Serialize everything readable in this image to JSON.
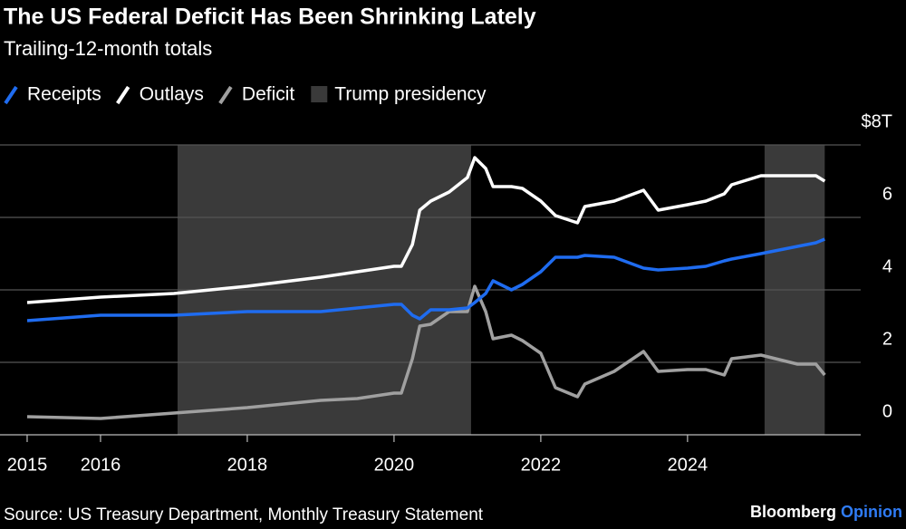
{
  "chart_data": {
    "type": "line",
    "title": "The US Federal Deficit Has Been Shrinking Lately",
    "subtitle": "Trailing-12-month totals",
    "source": "Source: US Treasury Department, Monthly Treasury Statement",
    "brand": "Bloomberg",
    "brand_tag": "Opinion",
    "x": [
      2015,
      2016,
      2017,
      2018,
      2019,
      2019.5,
      2020.0,
      2020.1,
      2020.25,
      2020.35,
      2020.5,
      2020.75,
      2021.0,
      2021.1,
      2021.25,
      2021.35,
      2021.6,
      2021.75,
      2022.0,
      2022.2,
      2022.5,
      2022.6,
      2023.0,
      2023.4,
      2023.6,
      2024.0,
      2024.25,
      2024.5,
      2024.6,
      2025.0,
      2025.5,
      2025.75,
      2025.87
    ],
    "series": [
      {
        "name": "Receipts",
        "color": "#1f6cf0",
        "values": [
          3.15,
          3.3,
          3.3,
          3.4,
          3.4,
          3.5,
          3.6,
          3.6,
          3.3,
          3.2,
          3.45,
          3.45,
          3.5,
          3.65,
          3.9,
          4.25,
          4.0,
          4.15,
          4.5,
          4.9,
          4.9,
          4.95,
          4.9,
          4.6,
          4.55,
          4.6,
          4.65,
          4.8,
          4.85,
          5.0,
          5.2,
          5.3,
          5.4
        ]
      },
      {
        "name": "Outlays",
        "color": "#ffffff",
        "values": [
          3.65,
          3.8,
          3.9,
          4.1,
          4.35,
          4.5,
          4.65,
          4.65,
          5.25,
          6.2,
          6.45,
          6.7,
          7.1,
          7.65,
          7.35,
          6.85,
          6.85,
          6.8,
          6.45,
          6.05,
          5.85,
          6.3,
          6.45,
          6.75,
          6.2,
          6.35,
          6.45,
          6.65,
          6.9,
          7.15,
          7.15,
          7.15,
          7.0
        ]
      },
      {
        "name": "Deficit",
        "color": "#a0a0a0",
        "values": [
          0.5,
          0.45,
          0.6,
          0.75,
          0.95,
          1.0,
          1.15,
          1.15,
          2.1,
          3.0,
          3.05,
          3.4,
          3.4,
          4.1,
          3.4,
          2.65,
          2.75,
          2.6,
          2.25,
          1.3,
          1.05,
          1.4,
          1.75,
          2.3,
          1.75,
          1.8,
          1.8,
          1.65,
          2.1,
          2.2,
          1.95,
          1.95,
          1.65
        ]
      }
    ],
    "shaded": {
      "name": "Trump presidency",
      "color": "#3a3a3a",
      "ranges": [
        [
          2017.05,
          2021.05
        ],
        [
          2025.05,
          2025.87
        ]
      ]
    },
    "xlim": [
      2014.63,
      2026.36
    ],
    "xticks": [
      2015,
      2016,
      2018,
      2020,
      2022,
      2024
    ],
    "ylim": [
      0,
      8
    ],
    "yticks": [
      0,
      2,
      4,
      6,
      {
        "value": 8,
        "label": "$8T"
      }
    ],
    "grid": true
  }
}
